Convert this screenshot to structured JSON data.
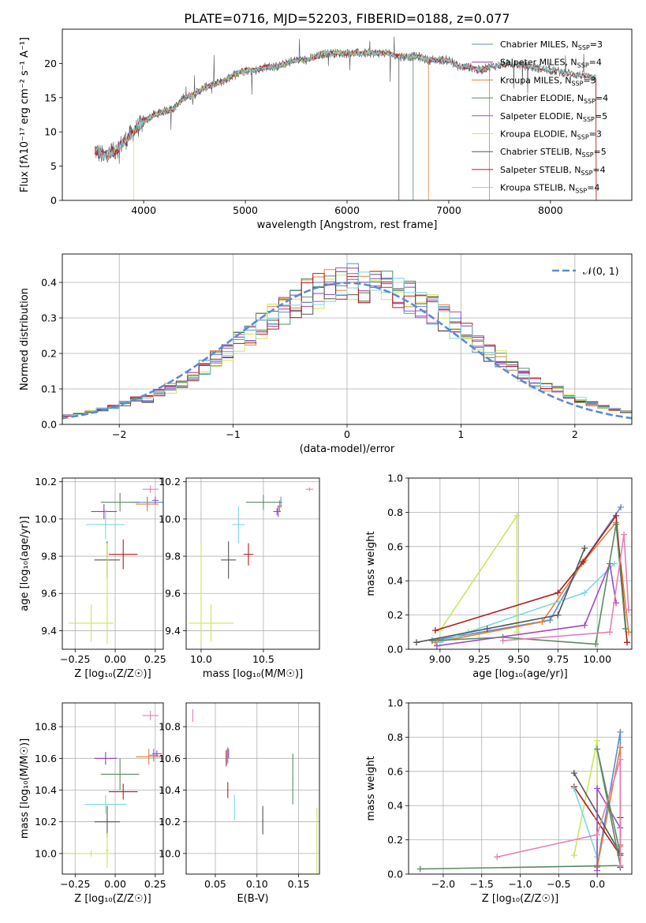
{
  "title": "PLATE=0716, MJD=52203, FIBERID=0188, z=0.077",
  "colors": {
    "chab_miles": "#5b8bd4",
    "salp_miles": "#8e3fb0",
    "krou_miles": "#e2803a",
    "chab_elodie": "#5a8a64",
    "salp_elodie": "#a34bc2",
    "krou_elodie": "#cbe55e",
    "chab_stelib": "#555555",
    "salp_stelib": "#b01c1c",
    "krou_stelib": "#7ad8dc",
    "pink": "#e57fb8",
    "gauss": "#5b8bd4",
    "grid": "#b0b0b0"
  },
  "chart_data": [
    {
      "id": "spectrum",
      "type": "line",
      "xlabel": "wavelength [Angstrom, rest frame]",
      "ylabel": "Flux [fλ10⁻¹⁷ erg cm⁻² s⁻¹ A⁻¹]",
      "xlim": [
        3200,
        8800
      ],
      "ylim": [
        0,
        25
      ],
      "xticks": [
        4000,
        5000,
        6000,
        7000,
        8000
      ],
      "yticks": [
        0,
        5,
        10,
        15,
        20
      ],
      "grid": false,
      "legend_position": "top-right",
      "continuum": {
        "x": [
          3500,
          3600,
          3700,
          3800,
          3900,
          4000,
          4100,
          4200,
          4300,
          4400,
          4500,
          4600,
          4700,
          4800,
          4900,
          5000,
          5100,
          5200,
          5300,
          5400,
          5500,
          5600,
          5700,
          5800,
          5900,
          6000,
          6100,
          6200,
          6300,
          6400,
          6500,
          6600,
          6700,
          6800,
          6900,
          7000,
          7100,
          7200,
          7300,
          7400,
          7600,
          7800,
          8000,
          8200,
          8400
        ],
        "y": [
          7.5,
          6.5,
          7,
          8.5,
          10,
          11.5,
          12.5,
          13,
          13.5,
          15,
          15.5,
          16.5,
          17,
          17.5,
          18.5,
          19,
          19,
          19.5,
          19.5,
          20,
          20.5,
          20.5,
          21,
          21.5,
          21.5,
          21.5,
          21.5,
          21.5,
          21.5,
          21.5,
          21,
          21,
          21,
          20.5,
          20.5,
          20.5,
          19.5,
          19.5,
          19,
          19.5,
          20,
          19.5,
          19,
          18.5,
          18
        ]
      },
      "series": [
        {
          "name": "Chabrier MILES, N_SSP=3",
          "color_key": "chab_miles",
          "xmin": 3530,
          "xmax": 7400
        },
        {
          "name": "Salpeter MILES, N_SSP=4",
          "color_key": "salp_miles",
          "xmin": 3530,
          "xmax": 7400
        },
        {
          "name": "Kroupa MILES, N_SSP=3",
          "color_key": "krou_miles",
          "xmin": 3530,
          "xmax": 7400
        },
        {
          "name": "Chabrier ELODIE, N_SSP=4",
          "color_key": "chab_elodie",
          "xmin": 3900,
          "xmax": 6800
        },
        {
          "name": "Salpeter ELODIE, N_SSP=5",
          "color_key": "salp_elodie",
          "xmin": 3900,
          "xmax": 6800
        },
        {
          "name": "Kroupa ELODIE, N_SSP=3",
          "color_key": "krou_elodie",
          "xmin": 3900,
          "xmax": 6800
        },
        {
          "name": "Chabrier STELIB, N_SSP=5",
          "color_key": "chab_stelib",
          "xmin": 3520,
          "xmax": 8450
        },
        {
          "name": "Salpeter STELIB, N_SSP=4",
          "color_key": "salp_stelib",
          "xmin": 3520,
          "xmax": 8450
        },
        {
          "name": "Kroupa STELIB, N_SSP=4",
          "color_key": "krou_stelib",
          "xmin": 3520,
          "xmax": 8450
        }
      ]
    },
    {
      "id": "residuals",
      "type": "histogram",
      "xlabel": "(data-model)/error",
      "ylabel": "Normed distribution",
      "xlim": [
        -2.5,
        2.5
      ],
      "ylim": [
        0,
        0.48
      ],
      "xticks": [
        -2,
        -1,
        0,
        1,
        2
      ],
      "yticks": [
        0.0,
        0.1,
        0.2,
        0.3,
        0.4
      ],
      "grid": true,
      "legend_position": "top-right",
      "bin_width": 0.1,
      "bin_start": -2.6,
      "gaussian": {
        "label": "𝒩(0, 1)",
        "mu": 0,
        "sigma": 1
      }
    },
    {
      "id": "age_vs_z",
      "type": "errorbar",
      "xlabel": "Z [log₁₀(Z/Z☉)]",
      "ylabel": "age  [log₁₀(age/yr)]",
      "xlim": [
        -0.33,
        0.3
      ],
      "ylim": [
        9.3,
        10.22
      ],
      "xticks": [
        -0.25,
        0.0,
        0.25
      ],
      "yticks": [
        9.4,
        9.6,
        9.8,
        10.0,
        10.2
      ],
      "grid": true,
      "points": [
        {
          "color_key": "chab_miles",
          "x": 0.2,
          "xerr": 0.1,
          "y": 10.09,
          "yerr": 0.03
        },
        {
          "color_key": "salp_miles",
          "x": -0.07,
          "xerr": 0.08,
          "y": 10.04,
          "yerr": 0.04
        },
        {
          "color_key": "krou_miles",
          "x": 0.2,
          "xerr": 0.07,
          "y": 10.08,
          "yerr": 0.04
        },
        {
          "color_key": "chab_elodie",
          "x": 0.03,
          "xerr": 0.12,
          "y": 10.09,
          "yerr": 0.05
        },
        {
          "color_key": "salp_elodie",
          "x": 0.25,
          "xerr": 0.02,
          "y": 10.1,
          "yerr": 0.02
        },
        {
          "color_key": "krou_elodie",
          "x": -0.15,
          "xerr": 0.14,
          "y": 9.44,
          "yerr": 0.1
        },
        {
          "color_key": "chab_stelib",
          "x": -0.05,
          "xerr": 0.08,
          "y": 9.78,
          "yerr": 0.1
        },
        {
          "color_key": "salp_stelib",
          "x": 0.05,
          "xerr": 0.09,
          "y": 9.81,
          "yerr": 0.08
        },
        {
          "color_key": "krou_stelib",
          "x": -0.06,
          "xerr": 0.12,
          "y": 9.97,
          "yerr": 0.08
        },
        {
          "color_key": "krou_elodie",
          "x": -0.05,
          "xerr": 0.01,
          "y": 9.6,
          "yerr": 0.27
        },
        {
          "color_key": "pink",
          "x": 0.22,
          "xerr": 0.05,
          "y": 10.16,
          "yerr": 0.02
        }
      ]
    },
    {
      "id": "age_vs_mass",
      "type": "errorbar",
      "xlabel": "mass [log₁₀(M/M☉)]",
      "ylabel": "",
      "xlim": [
        9.88,
        10.95
      ],
      "ylim": [
        9.3,
        10.22
      ],
      "xticks": [
        10.0,
        10.5
      ],
      "yticks": [
        9.4,
        9.6,
        9.8,
        10.0,
        10.2
      ],
      "grid": true,
      "points": [
        {
          "color_key": "chab_miles",
          "x": 10.64,
          "xerr": 0.01,
          "y": 10.09,
          "yerr": 0.03
        },
        {
          "color_key": "salp_miles",
          "x": 10.61,
          "xerr": 0.03,
          "y": 10.04,
          "yerr": 0.02
        },
        {
          "color_key": "krou_miles",
          "x": 10.63,
          "xerr": 0.02,
          "y": 10.07,
          "yerr": 0.03
        },
        {
          "color_key": "chab_elodie",
          "x": 10.5,
          "xerr": 0.14,
          "y": 10.09,
          "yerr": 0.04
        },
        {
          "color_key": "salp_elodie",
          "x": 10.62,
          "xerr": 0.01,
          "y": 10.04,
          "yerr": 0.03
        },
        {
          "color_key": "krou_elodie",
          "x": 10.08,
          "xerr": 0.18,
          "y": 9.44,
          "yerr": 0.1
        },
        {
          "color_key": "chab_stelib",
          "x": 10.22,
          "xerr": 0.06,
          "y": 9.78,
          "yerr": 0.1
        },
        {
          "color_key": "salp_stelib",
          "x": 10.38,
          "xerr": 0.04,
          "y": 9.81,
          "yerr": 0.06
        },
        {
          "color_key": "krou_stelib",
          "x": 10.3,
          "xerr": 0.05,
          "y": 9.97,
          "yerr": 0.1
        },
        {
          "color_key": "krou_elodie",
          "x": 10.0,
          "xerr": 0.01,
          "y": 9.6,
          "yerr": 0.27
        },
        {
          "color_key": "pink",
          "x": 10.87,
          "xerr": 0.03,
          "y": 10.16,
          "yerr": 0.01
        }
      ]
    },
    {
      "id": "weight_vs_age",
      "type": "line",
      "xlabel": "age  [log₁₀(age/yr)]",
      "ylabel": "mass weight",
      "xlim": [
        8.8,
        10.22
      ],
      "ylim": [
        0,
        1
      ],
      "xticks": [
        9.0,
        9.25,
        9.5,
        9.75,
        10.0
      ],
      "yticks": [
        0.0,
        0.2,
        0.4,
        0.6,
        0.8,
        1.0
      ],
      "grid": true,
      "series": [
        {
          "color_key": "krou_elodie",
          "x": [
            9.0,
            9.49,
            9.49
          ],
          "y": [
            0.11,
            0.78,
            0.1
          ]
        },
        {
          "color_key": "chab_miles",
          "x": [
            8.95,
            9.7,
            9.9,
            10.15
          ],
          "y": [
            0.05,
            0.17,
            0.5,
            0.83
          ]
        },
        {
          "color_key": "krou_miles",
          "x": [
            8.97,
            9.65,
            9.92,
            10.12,
            10.2
          ],
          "y": [
            0.04,
            0.16,
            0.52,
            0.74,
            0.1
          ]
        },
        {
          "color_key": "salp_stelib",
          "x": [
            8.97,
            9.75,
            9.91,
            10.12,
            10.19
          ],
          "y": [
            0.11,
            0.33,
            0.51,
            0.78,
            0.04
          ]
        },
        {
          "color_key": "krou_stelib",
          "x": [
            9.0,
            9.18,
            9.92,
            10.11
          ],
          "y": [
            0.04,
            0.1,
            0.33,
            0.5
          ]
        },
        {
          "color_key": "chab_stelib",
          "x": [
            8.85,
            9.3,
            9.75,
            9.92
          ],
          "y": [
            0.04,
            0.12,
            0.2,
            0.59
          ]
        },
        {
          "color_key": "salp_elodie",
          "x": [
            8.98,
            9.92,
            10.08,
            10.12
          ],
          "y": [
            0.02,
            0.14,
            0.5,
            0.27
          ]
        },
        {
          "color_key": "chab_elodie",
          "x": [
            8.95,
            9.4,
            9.99,
            10.12,
            10.18
          ],
          "y": [
            0.05,
            0.07,
            0.03,
            0.73,
            0.12
          ]
        },
        {
          "color_key": "pink",
          "x": [
            9.4,
            10.08,
            10.17,
            10.2
          ],
          "y": [
            0.05,
            0.1,
            0.67,
            0.23
          ]
        }
      ]
    },
    {
      "id": "mass_vs_z",
      "type": "errorbar",
      "xlabel": "Z [log₁₀(Z/Z☉)]",
      "ylabel": "mass [log₁₀(M/M☉)]",
      "xlim": [
        -0.33,
        0.3
      ],
      "ylim": [
        9.87,
        10.95
      ],
      "xticks": [
        -0.25,
        0.0,
        0.25
      ],
      "yticks": [
        10.0,
        10.2,
        10.4,
        10.6,
        10.8
      ],
      "grid": true,
      "points": [
        {
          "color_key": "chab_miles",
          "x": 0.24,
          "xerr": 0.03,
          "y": 10.62,
          "yerr": 0.04
        },
        {
          "color_key": "salp_miles",
          "x": -0.06,
          "xerr": 0.07,
          "y": 10.6,
          "yerr": 0.04
        },
        {
          "color_key": "krou_miles",
          "x": 0.21,
          "xerr": 0.08,
          "y": 10.61,
          "yerr": 0.05
        },
        {
          "color_key": "chab_elodie",
          "x": 0.03,
          "xerr": 0.12,
          "y": 10.5,
          "yerr": 0.1
        },
        {
          "color_key": "salp_elodie",
          "x": 0.26,
          "xerr": 0.03,
          "y": 10.63,
          "yerr": 0.02
        },
        {
          "color_key": "krou_elodie",
          "x": -0.15,
          "xerr": 0.14,
          "y": 10.0,
          "yerr": 0.02
        },
        {
          "color_key": "chab_stelib",
          "x": -0.05,
          "xerr": 0.08,
          "y": 10.2,
          "yerr": 0.1
        },
        {
          "color_key": "salp_stelib",
          "x": 0.05,
          "xerr": 0.09,
          "y": 10.39,
          "yerr": 0.05
        },
        {
          "color_key": "krou_stelib",
          "x": -0.06,
          "xerr": 0.13,
          "y": 10.31,
          "yerr": 0.06
        },
        {
          "color_key": "krou_elodie",
          "x": -0.05,
          "xerr": 0.01,
          "y": 10.02,
          "yerr": 0.11
        },
        {
          "color_key": "pink",
          "x": 0.22,
          "xerr": 0.05,
          "y": 10.87,
          "yerr": 0.03
        }
      ]
    },
    {
      "id": "mass_vs_ebv",
      "type": "errorbar",
      "xlabel": "E(B-V)",
      "ylabel": "",
      "xlim": [
        0.015,
        0.175
      ],
      "ylim": [
        9.87,
        10.95
      ],
      "xticks": [
        0.05,
        0.1,
        0.15
      ],
      "yticks": [
        10.0,
        10.2,
        10.4,
        10.6,
        10.8
      ],
      "grid": true,
      "points": [
        {
          "color_key": "chab_miles",
          "x": 0.065,
          "xerr": 0.0005,
          "y": 10.62,
          "yerr": 0.05
        },
        {
          "color_key": "salp_miles",
          "x": 0.063,
          "xerr": 0.0005,
          "y": 10.6,
          "yerr": 0.05
        },
        {
          "color_key": "krou_miles",
          "x": 0.064,
          "xerr": 0.0005,
          "y": 10.61,
          "yerr": 0.05
        },
        {
          "color_key": "chab_elodie",
          "x": 0.143,
          "xerr": 0.0005,
          "y": 10.47,
          "yerr": 0.16
        },
        {
          "color_key": "salp_elodie",
          "x": 0.066,
          "xerr": 0.0005,
          "y": 10.63,
          "yerr": 0.03
        },
        {
          "color_key": "krou_elodie",
          "x": 0.172,
          "xerr": 0.0005,
          "y": 10.01,
          "yerr": 0.28
        },
        {
          "color_key": "chab_stelib",
          "x": 0.107,
          "xerr": 0.0005,
          "y": 10.21,
          "yerr": 0.09
        },
        {
          "color_key": "salp_stelib",
          "x": 0.065,
          "xerr": 0.0005,
          "y": 10.4,
          "yerr": 0.05
        },
        {
          "color_key": "krou_stelib",
          "x": 0.073,
          "xerr": 0.0005,
          "y": 10.29,
          "yerr": 0.08
        },
        {
          "color_key": "pink",
          "x": 0.023,
          "xerr": 0.0005,
          "y": 10.87,
          "yerr": 0.04
        }
      ]
    },
    {
      "id": "weight_vs_z",
      "type": "line",
      "xlabel": "Z [log₁₀(Z/Z☉)]",
      "ylabel": "mass weight",
      "xlim": [
        -2.45,
        0.45
      ],
      "ylim": [
        0,
        1
      ],
      "xticks": [
        -2.0,
        -1.5,
        -1.0,
        -0.5,
        0.0
      ],
      "yticks": [
        0.0,
        0.2,
        0.4,
        0.6,
        0.8,
        1.0
      ],
      "grid": true,
      "series": [
        {
          "color_key": "krou_elodie",
          "x": [
            -0.3,
            0.0,
            0.0
          ],
          "y": [
            0.11,
            0.78,
            0.1
          ]
        },
        {
          "color_key": "chab_miles",
          "x": [
            0.0,
            0.3,
            0.3
          ],
          "y": [
            0.05,
            0.83,
            0.17
          ]
        },
        {
          "color_key": "krou_miles",
          "x": [
            0.0,
            0.3,
            0.3
          ],
          "y": [
            0.04,
            0.74,
            0.16
          ]
        },
        {
          "color_key": "salp_stelib",
          "x": [
            -0.3,
            0.3,
            0.3
          ],
          "y": [
            0.51,
            0.11,
            0.33
          ]
        },
        {
          "color_key": "krou_stelib",
          "x": [
            -0.3,
            0.0,
            0.0
          ],
          "y": [
            0.5,
            0.1,
            0.33
          ]
        },
        {
          "color_key": "chab_stelib",
          "x": [
            -0.3,
            0.3,
            0.3
          ],
          "y": [
            0.59,
            0.12,
            0.04
          ]
        },
        {
          "color_key": "salp_elodie",
          "x": [
            0.0,
            0.0,
            0.3
          ],
          "y": [
            0.02,
            0.5,
            0.27
          ]
        },
        {
          "color_key": "chab_elodie",
          "x": [
            -2.3,
            0.3,
            0.0,
            0.3
          ],
          "y": [
            0.03,
            0.05,
            0.73,
            0.12
          ]
        },
        {
          "color_key": "pink",
          "x": [
            -1.3,
            0.0,
            0.3,
            0.3
          ],
          "y": [
            0.1,
            0.23,
            0.67,
            0.05
          ]
        }
      ]
    }
  ]
}
